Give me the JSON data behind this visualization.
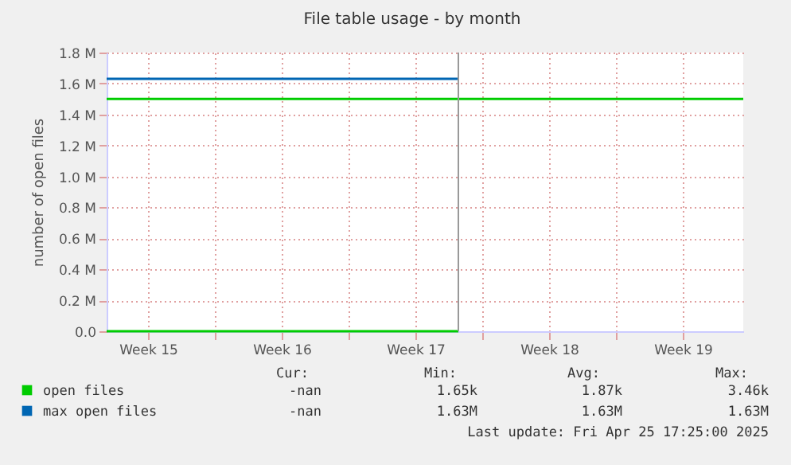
{
  "chart_data": {
    "type": "line",
    "title": "File table usage - by month",
    "ylabel": "number of open files",
    "xlim": [
      "2025-04-08T08:00",
      "2025-05-11T16:00"
    ],
    "xticks": [
      {
        "value": "2025-04-10T12:00",
        "label": "Week 15"
      },
      {
        "value": "2025-04-14",
        "label": null
      },
      {
        "value": "2025-04-17T12:00",
        "label": "Week 16"
      },
      {
        "value": "2025-04-21",
        "label": null
      },
      {
        "value": "2025-04-24T12:00",
        "label": "Week 17"
      },
      {
        "value": "2025-04-28",
        "label": null
      },
      {
        "value": "2025-05-01T12:00",
        "label": "Week 18"
      },
      {
        "value": "2025-05-05",
        "label": null
      },
      {
        "value": "2025-05-08T12:00",
        "label": "Week 19"
      }
    ],
    "ylim": [
      0,
      1800000
    ],
    "yticks": [
      {
        "value": 0,
        "label": "0.0"
      },
      {
        "value": 200000,
        "label": "0.2 M"
      },
      {
        "value": 400000,
        "label": "0.4 M"
      },
      {
        "value": 600000,
        "label": "0.6 M"
      },
      {
        "value": 800000,
        "label": "0.8 M"
      },
      {
        "value": 1000000,
        "label": "1.0 M"
      },
      {
        "value": 1200000,
        "label": "1.2 M"
      },
      {
        "value": 1400000,
        "label": "1.4 M"
      },
      {
        "value": 1600000,
        "label": "1.6 M"
      },
      {
        "value": 1800000,
        "label": "1.8 M"
      }
    ],
    "series": [
      {
        "name": "open files",
        "color": "#00cc00",
        "x": [
          "2025-04-08T08:00",
          "2025-04-26T18:00"
        ],
        "values": [
          0,
          0
        ]
      },
      {
        "name": "max open files",
        "color": "#0066b3",
        "x": [
          "2025-04-08T08:00",
          "2025-04-26T18:00"
        ],
        "values": [
          1630000,
          1630000
        ]
      }
    ],
    "ref_lines": [
      {
        "axis": "y",
        "value": 1500000,
        "color": "#00cc00"
      },
      {
        "axis": "x",
        "value": "2025-04-26T18:00",
        "color": "#999999"
      }
    ],
    "grid": true,
    "legend": "bottom",
    "marker": "none",
    "line_style": "solid",
    "annotations": [
      "Cur:",
      "Min:",
      "Avg:",
      "Max:",
      "-nan",
      "1.65k",
      "1.87k",
      "3.46k",
      "-nan",
      "1.63M",
      "1.63M",
      "1.63M",
      "Last update: Fri Apr 25 17:25:00 2025"
    ]
  }
}
